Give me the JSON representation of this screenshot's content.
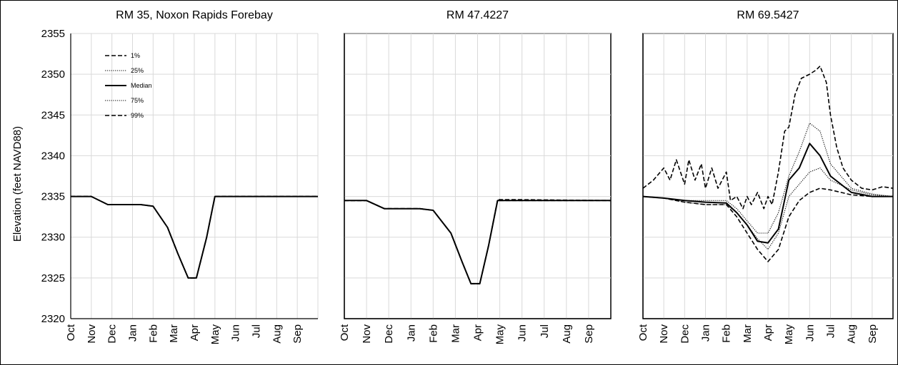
{
  "figure": {
    "ylabel": "Elevation (feet NAVD88)"
  },
  "chart_data": [
    {
      "type": "line",
      "title": "RM 35, Noxon Rapids Forebay",
      "ylabel": "Elevation (feet NAVD88)",
      "ylim": [
        2320,
        2355
      ],
      "yticks": [
        2320,
        2325,
        2330,
        2335,
        2340,
        2345,
        2350,
        2355
      ],
      "xlim": [
        0,
        12
      ],
      "x_tick_labels": [
        "Oct",
        "Nov",
        "Dec",
        "Jan",
        "Feb",
        "Mar",
        "Apr",
        "May",
        "Jun",
        "Jul",
        "Aug",
        "Sep"
      ],
      "grid": true,
      "legend": {
        "placement": "top-left",
        "entries": [
          {
            "label": "1%",
            "style": "dashed"
          },
          {
            "label": "25%",
            "style": "dotted"
          },
          {
            "label": "Median",
            "style": "solid"
          },
          {
            "label": "75%",
            "style": "dotted"
          },
          {
            "label": "99%",
            "style": "dashed"
          }
        ]
      },
      "series": [
        {
          "name": "1%",
          "style": "dashed",
          "x": [
            0,
            1,
            1.8,
            3.4,
            4.0,
            4.7,
            5.2,
            5.7,
            6.1,
            6.6,
            7.0,
            12
          ],
          "y": [
            2335.0,
            2335.0,
            2334.0,
            2334.0,
            2333.8,
            2331.2,
            2328.0,
            2325.0,
            2325.0,
            2330.0,
            2335.0,
            2335.0
          ]
        },
        {
          "name": "25%",
          "style": "dotted",
          "x": [
            0,
            1,
            1.8,
            3.4,
            4.0,
            4.7,
            5.2,
            5.7,
            6.1,
            6.6,
            7.0,
            12
          ],
          "y": [
            2335.0,
            2335.0,
            2334.0,
            2334.0,
            2333.8,
            2331.2,
            2328.0,
            2325.0,
            2325.0,
            2330.0,
            2335.0,
            2335.0
          ]
        },
        {
          "name": "Median",
          "style": "solid",
          "x": [
            0,
            1,
            1.8,
            3.4,
            4.0,
            4.7,
            5.2,
            5.7,
            6.1,
            6.6,
            7.0,
            12
          ],
          "y": [
            2335.0,
            2335.0,
            2334.0,
            2334.0,
            2333.8,
            2331.2,
            2328.0,
            2325.0,
            2325.0,
            2330.0,
            2335.0,
            2335.0
          ]
        },
        {
          "name": "75%",
          "style": "dotted",
          "x": [
            0,
            1,
            1.8,
            3.4,
            4.0,
            4.7,
            5.2,
            5.7,
            6.1,
            6.6,
            7.0,
            12
          ],
          "y": [
            2335.0,
            2335.0,
            2334.0,
            2334.0,
            2333.8,
            2331.2,
            2328.0,
            2325.0,
            2325.0,
            2330.0,
            2335.0,
            2335.0
          ]
        },
        {
          "name": "99%",
          "style": "dashed",
          "x": [
            0,
            1,
            1.8,
            3.4,
            4.0,
            4.7,
            5.2,
            5.7,
            6.1,
            6.6,
            7.0,
            12
          ],
          "y": [
            2335.0,
            2335.0,
            2334.0,
            2334.0,
            2333.8,
            2331.2,
            2328.0,
            2325.0,
            2325.0,
            2330.0,
            2335.0,
            2335.0
          ]
        }
      ]
    },
    {
      "type": "line",
      "title": "RM 47.4227",
      "ylim": [
        2320,
        2355
      ],
      "xlim": [
        0,
        12
      ],
      "x_tick_labels": [
        "Oct",
        "Nov",
        "Dec",
        "Jan",
        "Feb",
        "Mar",
        "Apr",
        "May",
        "Jun",
        "Jul",
        "Aug",
        "Sep"
      ],
      "grid": true,
      "series": [
        {
          "name": "1%",
          "style": "dashed",
          "x": [
            0,
            1,
            1.8,
            3.4,
            4.0,
            4.8,
            5.3,
            5.7,
            6.1,
            6.5,
            6.9,
            8.0,
            12
          ],
          "y": [
            2334.5,
            2334.5,
            2333.5,
            2333.5,
            2333.3,
            2330.5,
            2327.0,
            2324.3,
            2324.3,
            2329.0,
            2334.5,
            2334.5,
            2334.5
          ]
        },
        {
          "name": "25%",
          "style": "dotted",
          "x": [
            0,
            1,
            1.8,
            3.4,
            4.0,
            4.8,
            5.3,
            5.7,
            6.1,
            6.5,
            6.9,
            8.0,
            12
          ],
          "y": [
            2334.5,
            2334.5,
            2333.5,
            2333.5,
            2333.3,
            2330.5,
            2327.0,
            2324.3,
            2324.3,
            2329.0,
            2334.5,
            2334.5,
            2334.5
          ]
        },
        {
          "name": "Median",
          "style": "solid",
          "x": [
            0,
            1,
            1.8,
            3.4,
            4.0,
            4.8,
            5.3,
            5.7,
            6.1,
            6.5,
            6.9,
            8.0,
            12
          ],
          "y": [
            2334.5,
            2334.5,
            2333.5,
            2333.5,
            2333.3,
            2330.5,
            2327.0,
            2324.3,
            2324.3,
            2329.0,
            2334.5,
            2334.5,
            2334.5
          ]
        },
        {
          "name": "75%",
          "style": "dotted",
          "x": [
            0,
            1,
            1.8,
            3.4,
            4.0,
            4.8,
            5.3,
            5.7,
            6.1,
            6.5,
            6.9,
            8.0,
            12
          ],
          "y": [
            2334.5,
            2334.5,
            2333.5,
            2333.5,
            2333.3,
            2330.5,
            2327.0,
            2324.3,
            2324.3,
            2329.0,
            2334.5,
            2334.5,
            2334.5
          ]
        },
        {
          "name": "99%",
          "style": "dashed",
          "x": [
            0,
            1,
            1.8,
            3.4,
            4.0,
            4.8,
            5.3,
            5.7,
            6.1,
            6.5,
            6.9,
            8.0,
            12
          ],
          "y": [
            2334.5,
            2334.5,
            2333.5,
            2333.5,
            2333.3,
            2330.5,
            2327.0,
            2324.3,
            2324.3,
            2329.0,
            2334.6,
            2334.6,
            2334.5
          ]
        }
      ]
    },
    {
      "type": "line",
      "title": "RM 69.5427",
      "ylim": [
        2320,
        2355
      ],
      "xlim": [
        0,
        12
      ],
      "x_tick_labels": [
        "Oct",
        "Nov",
        "Dec",
        "Jan",
        "Feb",
        "Mar",
        "Apr",
        "May",
        "Jun",
        "Jul",
        "Aug",
        "Sep"
      ],
      "grid": true,
      "series": [
        {
          "name": "1%",
          "style": "dashed",
          "x": [
            0,
            1,
            2,
            3,
            4,
            4.5,
            5,
            5.5,
            6,
            6.5,
            7,
            7.5,
            8,
            8.5,
            9,
            10,
            11,
            12
          ],
          "y": [
            2335.0,
            2334.8,
            2334.3,
            2334.0,
            2334.0,
            2332.5,
            2330.5,
            2328.5,
            2327.0,
            2328.5,
            2332.5,
            2334.5,
            2335.5,
            2336.0,
            2335.8,
            2335.2,
            2335.0,
            2335.0
          ]
        },
        {
          "name": "25%",
          "style": "dotted",
          "x": [
            0,
            1,
            2,
            3,
            4,
            4.5,
            5,
            5.5,
            6,
            6.5,
            7,
            7.5,
            8,
            8.5,
            9,
            10,
            11,
            12
          ],
          "y": [
            2335.0,
            2334.8,
            2334.3,
            2334.0,
            2334.0,
            2333.0,
            2331.5,
            2329.8,
            2328.5,
            2330.5,
            2335.0,
            2336.5,
            2338.0,
            2338.5,
            2337.0,
            2335.8,
            2335.2,
            2335.0
          ]
        },
        {
          "name": "Median",
          "style": "solid",
          "x": [
            0,
            1,
            2,
            3,
            4,
            4.5,
            5,
            5.5,
            6,
            6.5,
            7,
            7.5,
            8,
            8.5,
            9,
            10,
            11,
            12
          ],
          "y": [
            2335.0,
            2334.8,
            2334.5,
            2334.3,
            2334.2,
            2333.0,
            2331.5,
            2329.5,
            2329.3,
            2331.0,
            2337.0,
            2338.5,
            2341.5,
            2340.0,
            2337.5,
            2335.5,
            2335.0,
            2335.0
          ]
        },
        {
          "name": "75%",
          "style": "dotted",
          "x": [
            0,
            1,
            2,
            3,
            4,
            4.5,
            5,
            5.5,
            6,
            6.5,
            7,
            7.5,
            8,
            8.5,
            9,
            10,
            11,
            12
          ],
          "y": [
            2335.0,
            2334.8,
            2334.5,
            2334.5,
            2334.5,
            2333.5,
            2332.0,
            2330.5,
            2330.5,
            2333.0,
            2337.5,
            2340.5,
            2344.0,
            2343.0,
            2339.0,
            2336.0,
            2335.3,
            2335.0
          ]
        },
        {
          "name": "99%",
          "style": "dashed",
          "x": [
            0,
            0.5,
            1,
            1.3,
            1.6,
            2.0,
            2.2,
            2.5,
            2.8,
            3.0,
            3.3,
            3.6,
            4.0,
            4.2,
            4.5,
            4.8,
            5.0,
            5.2,
            5.5,
            5.8,
            6.0,
            6.2,
            6.5,
            6.8,
            7.0,
            7.3,
            7.6,
            8.0,
            8.3,
            8.5,
            8.8,
            9.0,
            9.3,
            9.6,
            10.0,
            10.5,
            11.0,
            11.5,
            12
          ],
          "y": [
            2336.0,
            2337.0,
            2338.5,
            2337.0,
            2339.5,
            2336.5,
            2339.5,
            2337.0,
            2339.0,
            2336.0,
            2338.5,
            2336.0,
            2338.0,
            2334.5,
            2335.0,
            2333.5,
            2335.0,
            2334.0,
            2335.5,
            2333.5,
            2335.0,
            2334.0,
            2338.0,
            2343.0,
            2343.5,
            2347.5,
            2349.5,
            2350.0,
            2350.5,
            2351.0,
            2349.0,
            2345.0,
            2341.0,
            2338.5,
            2337.0,
            2336.0,
            2335.8,
            2336.2,
            2336.0
          ]
        }
      ]
    }
  ]
}
